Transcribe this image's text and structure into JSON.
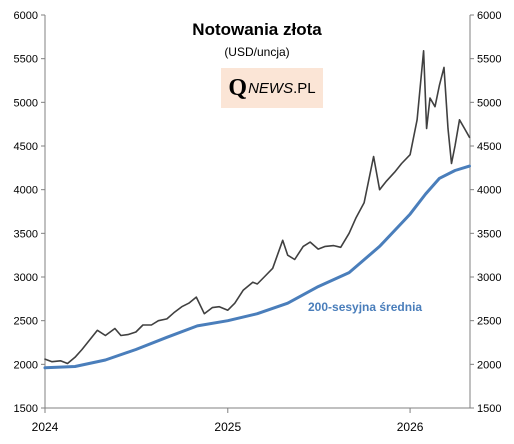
{
  "chart_data": {
    "type": "line",
    "title": "Notowania złota",
    "subtitle": "(USD/uncja)",
    "logo": {
      "q": "Q",
      "main": "NEWS",
      "suffix": ".PL",
      "color": "#fbe5d6"
    },
    "annotation": "200-sesyjna średnia",
    "ylim": [
      1500,
      6000
    ],
    "y_ticks": [
      1500,
      2000,
      2500,
      3000,
      3500,
      4000,
      4500,
      5000,
      5500,
      6000
    ],
    "y_axis_left": true,
    "y_axis_right": true,
    "x_range": [
      "2024-01-01",
      "2026-05-01"
    ],
    "x_ticks": [
      {
        "label": "2024",
        "date": "2024-01-01"
      },
      {
        "label": "2025",
        "date": "2025-01-01"
      },
      {
        "label": "2026",
        "date": "2026-01-01"
      }
    ],
    "grid": false,
    "series": [
      {
        "color": "#404040",
        "x": [
          "2024-01-01",
          "2024-01-15",
          "2024-02-01",
          "2024-02-15",
          "2024-03-01",
          "2024-03-15",
          "2024-04-01",
          "2024-04-15",
          "2024-05-01",
          "2024-05-20",
          "2024-06-01",
          "2024-06-15",
          "2024-07-01",
          "2024-07-15",
          "2024-08-01",
          "2024-08-15",
          "2024-09-01",
          "2024-09-15",
          "2024-10-01",
          "2024-10-15",
          "2024-10-30",
          "2024-11-15",
          "2024-12-01",
          "2024-12-15",
          "2025-01-01",
          "2025-01-15",
          "2025-02-01",
          "2025-02-20",
          "2025-03-01",
          "2025-03-15",
          "2025-04-01",
          "2025-04-21",
          "2025-05-01",
          "2025-05-15",
          "2025-06-01",
          "2025-06-15",
          "2025-07-01",
          "2025-07-15",
          "2025-08-01",
          "2025-08-15",
          "2025-09-01",
          "2025-09-15",
          "2025-10-01",
          "2025-10-20",
          "2025-11-01",
          "2025-11-15",
          "2025-12-01",
          "2025-12-15",
          "2026-01-01",
          "2026-01-15",
          "2026-01-28",
          "2026-02-03",
          "2026-02-10",
          "2026-02-20",
          "2026-03-01",
          "2026-03-10",
          "2026-03-18",
          "2026-03-25",
          "2026-04-01",
          "2026-04-10",
          "2026-04-20",
          "2026-04-30"
        ],
        "y": [
          2060,
          2030,
          2040,
          2010,
          2080,
          2170,
          2290,
          2390,
          2330,
          2410,
          2330,
          2340,
          2370,
          2450,
          2450,
          2500,
          2520,
          2590,
          2660,
          2700,
          2770,
          2580,
          2650,
          2660,
          2620,
          2700,
          2850,
          2940,
          2920,
          3000,
          3100,
          3420,
          3250,
          3200,
          3350,
          3400,
          3320,
          3350,
          3360,
          3340,
          3500,
          3680,
          3850,
          4380,
          4000,
          4100,
          4200,
          4300,
          4400,
          4800,
          5590,
          4700,
          5050,
          4950,
          5200,
          5400,
          4700,
          4300,
          4500,
          4800,
          4700,
          4600
        ]
      },
      {
        "name": "200-sesyjna średnia",
        "color": "#4a7ebb",
        "x": [
          "2024-01-01",
          "2024-03-01",
          "2024-05-01",
          "2024-07-01",
          "2024-09-01",
          "2024-11-01",
          "2025-01-01",
          "2025-03-01",
          "2025-05-01",
          "2025-07-01",
          "2025-09-01",
          "2025-11-01",
          "2026-01-01",
          "2026-02-01",
          "2026-03-01",
          "2026-04-01",
          "2026-04-30"
        ],
        "y": [
          1960,
          1975,
          2050,
          2170,
          2310,
          2440,
          2500,
          2580,
          2700,
          2890,
          3050,
          3350,
          3720,
          3950,
          4130,
          4220,
          4270
        ]
      }
    ]
  }
}
